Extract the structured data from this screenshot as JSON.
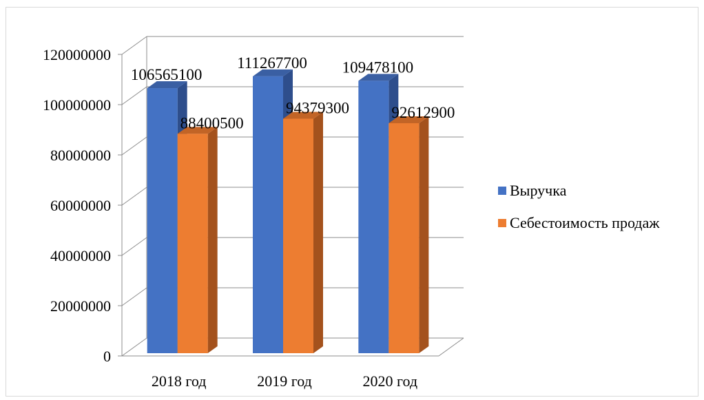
{
  "chart_data": {
    "type": "bar",
    "title": "",
    "xlabel": "",
    "ylabel": "",
    "categories": [
      "2018 год",
      "2019 год",
      "2020 год"
    ],
    "series": [
      {
        "name": "Выручка",
        "values": [
          106565100,
          111267700,
          109478100
        ],
        "color": "#4472C4",
        "side_color": "#2E4E8C",
        "top_color": "#3A5FA3"
      },
      {
        "name": "Себестоимость продаж",
        "values": [
          88400500,
          94379300,
          92612900
        ],
        "color": "#ED7D31",
        "side_color": "#A4521D",
        "top_color": "#C26426"
      }
    ],
    "ylim": [
      0,
      120000000
    ],
    "yticks": [
      0,
      20000000,
      40000000,
      60000000,
      80000000,
      100000000,
      120000000
    ],
    "ytick_labels": [
      "0",
      "20000000",
      "40000000",
      "60000000",
      "80000000",
      "100000000",
      "120000000"
    ],
    "grid": true,
    "three_d": true,
    "data_labels": true,
    "legend_position": "right",
    "gridline_color": "#8c8c8c"
  }
}
